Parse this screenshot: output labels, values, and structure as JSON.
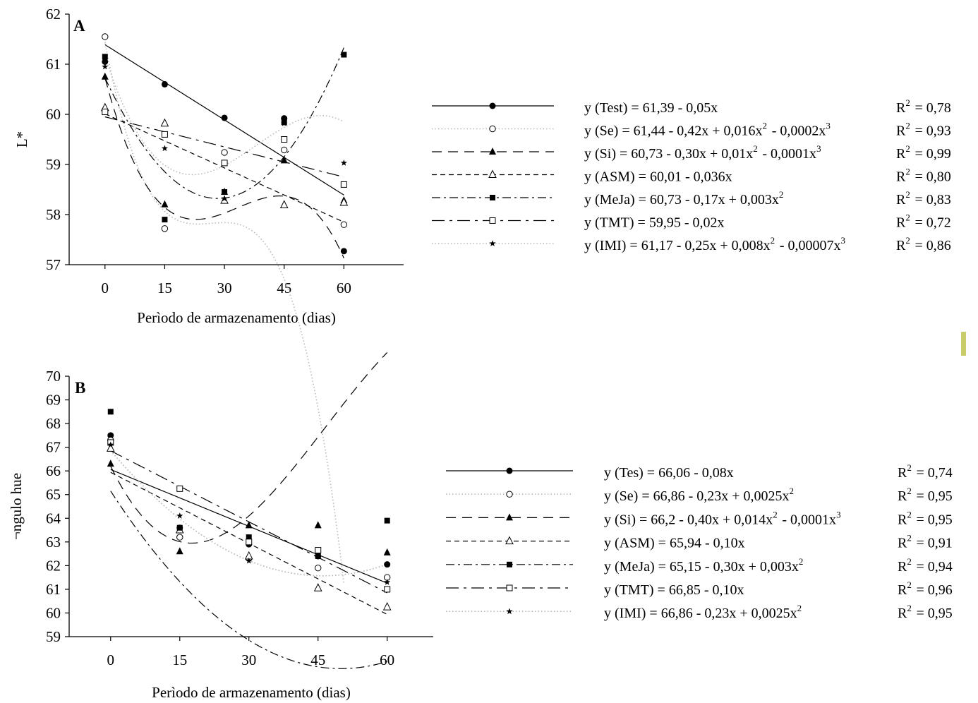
{
  "chart_data": [
    {
      "type": "scatter",
      "panel_label": "A",
      "title": "",
      "xlabel": "Perìodo de armazenamento (dias)",
      "ylabel": "L*",
      "x": [
        0,
        15,
        30,
        45,
        60
      ],
      "xticks": [
        "0",
        "15",
        "30",
        "45",
        "60"
      ],
      "yticks": [
        "57",
        "58",
        "59",
        "60",
        "61",
        "62"
      ],
      "xlim": [
        -9,
        75
      ],
      "ylim": [
        57,
        62
      ],
      "legend_position": "right",
      "series": [
        {
          "key": "test",
          "marker": "circle-filled",
          "line": "solid",
          "fit": [
            61.39,
            -0.05
          ],
          "values": [
            61.05,
            60.6,
            59.93,
            59.92,
            57.27
          ],
          "equation": "y (Test) = 61,39 - 0,05x",
          "r2": "R² = 0,78"
        },
        {
          "key": "se",
          "marker": "circle-open",
          "line": "dotted",
          "fit": [
            61.44,
            -0.42,
            0.016,
            -0.0002
          ],
          "values": [
            61.55,
            57.72,
            59.24,
            59.29,
            57.8
          ],
          "equation": "y (Se) = 61,44 - 0,42x + 0,016x² - 0,0002x³",
          "r2": "R² = 0,93"
        },
        {
          "key": "si",
          "marker": "triangle-filled",
          "line": "long-dash",
          "fit": [
            60.73,
            -0.3,
            0.01,
            -0.0001
          ],
          "values": [
            60.75,
            58.2,
            58.45,
            59.08,
            58.28
          ],
          "equation": "y (Si) =  60,73 - 0,30x + 0,01x² - 0,0001x³",
          "r2": "R² = 0,99"
        },
        {
          "key": "asm",
          "marker": "triangle-open",
          "line": "short-dash",
          "fit": [
            60.01,
            -0.036
          ],
          "values": [
            60.13,
            59.82,
            58.28,
            58.19,
            58.24
          ],
          "equation": "y (ASM) = 60,01 - 0,036x",
          "r2": "R² = 0,80"
        },
        {
          "key": "meja",
          "marker": "square-filled",
          "line": "dash-dot",
          "fit": [
            60.73,
            -0.17,
            0.003
          ],
          "values": [
            61.15,
            57.9,
            58.45,
            59.84,
            61.19
          ],
          "equation": "y (MeJa) = 60,73 - 0,17x + 0,003x²",
          "r2": "R² = 0,83"
        },
        {
          "key": "tmt",
          "marker": "square-open",
          "line": "long-dash-dot",
          "fit": [
            59.95,
            -0.02
          ],
          "values": [
            60.05,
            59.6,
            59.03,
            59.5,
            58.6
          ],
          "equation": "y (TMT) = 59,95 - 0,02x",
          "r2": "R² = 0,72"
        },
        {
          "key": "imi",
          "marker": "star",
          "line": "dotted",
          "fit": [
            61.17,
            -0.25,
            0.008,
            -7e-05
          ],
          "values": [
            60.95,
            59.32,
            58.32,
            59.82,
            59.03
          ],
          "equation": "y (IMI) = 61,17 - 0,25x + 0,008x² - 0,00007x³",
          "r2": "R² = 0,86"
        }
      ]
    },
    {
      "type": "scatter",
      "panel_label": "B",
      "title": "",
      "xlabel": "Perìodo de armazenamento (dias)",
      "ylabel": "¬ngulo hue",
      "x": [
        0,
        15,
        30,
        45,
        60
      ],
      "xticks": [
        "0",
        "15",
        "30",
        "45",
        "60"
      ],
      "yticks": [
        "59",
        "60",
        "61",
        "62",
        "63",
        "64",
        "65",
        "66",
        "67",
        "68",
        "69",
        "70"
      ],
      "xlim": [
        -9,
        70
      ],
      "ylim": [
        59,
        70
      ],
      "legend_position": "right",
      "series": [
        {
          "key": "tes",
          "marker": "circle-filled",
          "line": "solid",
          "fit": [
            66.06,
            -0.08
          ],
          "values": [
            67.5,
            63.6,
            62.9,
            62.4,
            62.05
          ],
          "equation": "y (Tes) = 66,06 - 0,08x",
          "r2": "R² = 0,74"
        },
        {
          "key": "se",
          "marker": "circle-open",
          "line": "dotted",
          "fit": [
            66.86,
            -0.23,
            0.0025
          ],
          "values": [
            67.3,
            63.2,
            62.3,
            61.9,
            61.5
          ],
          "equation": "y (Se) = 66,86 - 0,23x + 0,0025x²",
          "r2": "R² = 0,95"
        },
        {
          "key": "si",
          "marker": "triangle-filled",
          "line": "long-dash",
          "fit": [
            66.2,
            -0.4,
            0.014,
            -0.0001
          ],
          "values": [
            66.3,
            62.6,
            63.7,
            63.7,
            62.55
          ],
          "equation": "y (Si) = 66,2 - 0,40x + 0,014x² - 0,0001x³",
          "r2": "R² = 0,95"
        },
        {
          "key": "asm",
          "marker": "triangle-open",
          "line": "short-dash",
          "fit": [
            65.94,
            -0.1
          ],
          "values": [
            66.95,
            63.5,
            62.4,
            61.05,
            60.25
          ],
          "equation": "y (ASM) = 65,94 - 0,10x",
          "r2": "R² = 0,91"
        },
        {
          "key": "meja",
          "marker": "square-filled",
          "line": "dash-dot",
          "fit": [
            65.15,
            -0.3,
            0.003
          ],
          "values": [
            68.5,
            63.6,
            63.2,
            62.4,
            63.9
          ],
          "equation": "y (MeJa) = 65,15 - 0,30x + 0,003x²",
          "r2": "R² = 0,94"
        },
        {
          "key": "tmt",
          "marker": "square-open",
          "line": "long-dash-dot",
          "fit": [
            66.85,
            -0.1
          ],
          "values": [
            67.2,
            65.25,
            63.0,
            62.65,
            61.0
          ],
          "equation": "y (TMT) = 66,85 - 0,10x",
          "r2": "R² = 0,96"
        },
        {
          "key": "imi",
          "marker": "star",
          "line": "dotted",
          "fit": [
            66.86,
            -0.23,
            0.0025
          ],
          "values": [
            67.1,
            64.1,
            62.2,
            62.4,
            61.3
          ],
          "equation": "y (IMI) = 66,86 - 0,23x + 0,0025x²",
          "r2": "R² = 0,95"
        }
      ]
    }
  ]
}
